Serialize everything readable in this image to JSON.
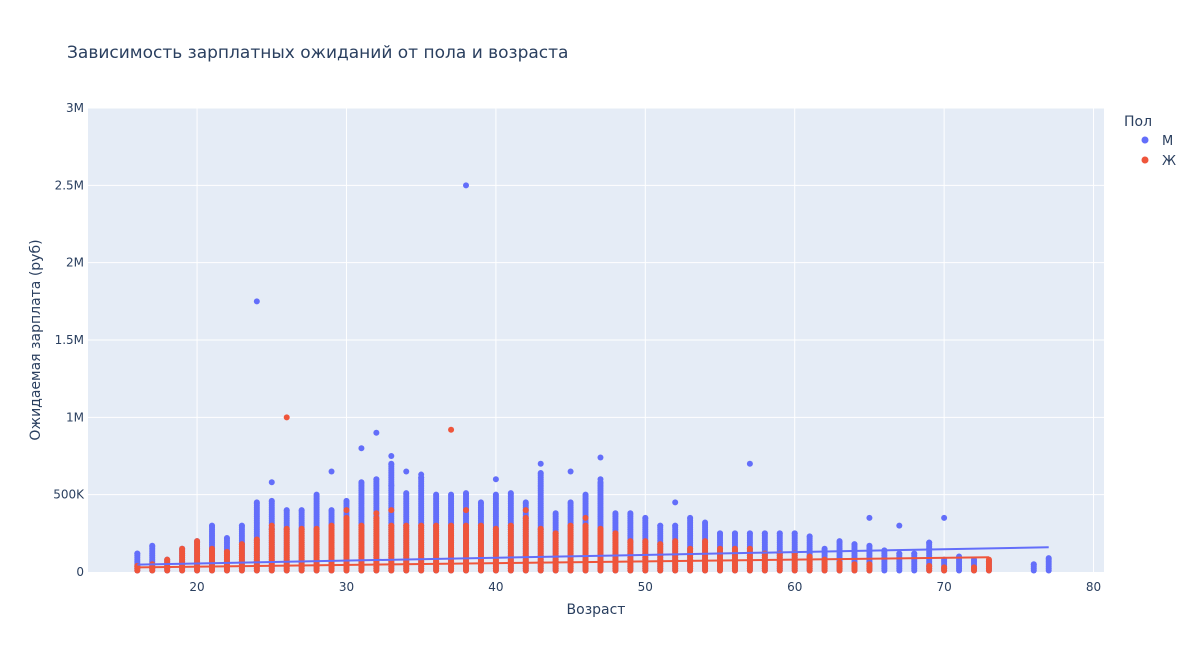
{
  "chart_data": {
    "type": "scatter",
    "title": "Зависимость зарплатных ожиданий от пола и возраста",
    "xlabel": "Возраст",
    "ylabel": "Ожидаемая зарплата (руб)",
    "xlim": [
      12.7,
      80.7
    ],
    "ylim": [
      0,
      3000000
    ],
    "x_ticks": [
      20,
      30,
      40,
      50,
      60,
      70,
      80
    ],
    "x_tick_labels": [
      "20",
      "30",
      "40",
      "50",
      "60",
      "70",
      "80"
    ],
    "y_ticks": [
      0,
      500000,
      1000000,
      1500000,
      2000000,
      2500000,
      3000000
    ],
    "y_tick_labels": [
      "0",
      "500K",
      "1M",
      "1.5M",
      "2M",
      "2.5M",
      "3M"
    ],
    "grid": true,
    "legend_title": "Пол",
    "legend_position": "top-right",
    "series": [
      {
        "name": "М",
        "color": "#636efa",
        "columns": [
          {
            "x": 16,
            "max": 120000
          },
          {
            "x": 17,
            "max": 170000
          },
          {
            "x": 18,
            "max": 80000
          },
          {
            "x": 19,
            "max": 150000
          },
          {
            "x": 20,
            "max": 200000
          },
          {
            "x": 21,
            "max": 300000
          },
          {
            "x": 22,
            "max": 220000
          },
          {
            "x": 23,
            "max": 300000
          },
          {
            "x": 24,
            "max": 450000
          },
          {
            "x": 25,
            "max": 460000
          },
          {
            "x": 26,
            "max": 400000
          },
          {
            "x": 27,
            "max": 400000
          },
          {
            "x": 28,
            "max": 500000
          },
          {
            "x": 29,
            "max": 400000
          },
          {
            "x": 30,
            "max": 460000
          },
          {
            "x": 31,
            "max": 580000
          },
          {
            "x": 32,
            "max": 600000
          },
          {
            "x": 33,
            "max": 700000
          },
          {
            "x": 34,
            "max": 510000
          },
          {
            "x": 35,
            "max": 610000
          },
          {
            "x": 36,
            "max": 500000
          },
          {
            "x": 37,
            "max": 500000
          },
          {
            "x": 38,
            "max": 510000
          },
          {
            "x": 39,
            "max": 450000
          },
          {
            "x": 40,
            "max": 500000
          },
          {
            "x": 41,
            "max": 510000
          },
          {
            "x": 42,
            "max": 450000
          },
          {
            "x": 43,
            "max": 640000
          },
          {
            "x": 44,
            "max": 380000
          },
          {
            "x": 45,
            "max": 450000
          },
          {
            "x": 46,
            "max": 500000
          },
          {
            "x": 47,
            "max": 580000
          },
          {
            "x": 48,
            "max": 380000
          },
          {
            "x": 49,
            "max": 380000
          },
          {
            "x": 50,
            "max": 350000
          },
          {
            "x": 51,
            "max": 300000
          },
          {
            "x": 52,
            "max": 300000
          },
          {
            "x": 53,
            "max": 350000
          },
          {
            "x": 54,
            "max": 320000
          },
          {
            "x": 55,
            "max": 250000
          },
          {
            "x": 56,
            "max": 250000
          },
          {
            "x": 57,
            "max": 250000
          },
          {
            "x": 58,
            "max": 250000
          },
          {
            "x": 59,
            "max": 250000
          },
          {
            "x": 60,
            "max": 250000
          },
          {
            "x": 61,
            "max": 230000
          },
          {
            "x": 62,
            "max": 150000
          },
          {
            "x": 63,
            "max": 200000
          },
          {
            "x": 64,
            "max": 180000
          },
          {
            "x": 65,
            "max": 170000
          },
          {
            "x": 66,
            "max": 140000
          },
          {
            "x": 67,
            "max": 120000
          },
          {
            "x": 68,
            "max": 120000
          },
          {
            "x": 69,
            "max": 190000
          },
          {
            "x": 70,
            "max": 80000
          },
          {
            "x": 71,
            "max": 100000
          },
          {
            "x": 72,
            "max": 80000
          },
          {
            "x": 73,
            "max": 70000
          },
          {
            "x": 76,
            "max": 50000
          },
          {
            "x": 77,
            "max": 90000
          }
        ],
        "outliers": [
          {
            "x": 38,
            "y": 2500000
          },
          {
            "x": 24,
            "y": 1750000
          },
          {
            "x": 32,
            "y": 900000
          },
          {
            "x": 31,
            "y": 800000
          },
          {
            "x": 33,
            "y": 750000
          },
          {
            "x": 47,
            "y": 740000
          },
          {
            "x": 43,
            "y": 700000
          },
          {
            "x": 57,
            "y": 700000
          },
          {
            "x": 45,
            "y": 650000
          },
          {
            "x": 29,
            "y": 650000
          },
          {
            "x": 34,
            "y": 650000
          },
          {
            "x": 35,
            "y": 630000
          },
          {
            "x": 40,
            "y": 600000
          },
          {
            "x": 47,
            "y": 600000
          },
          {
            "x": 25,
            "y": 580000
          },
          {
            "x": 33,
            "y": 560000
          },
          {
            "x": 65,
            "y": 350000
          },
          {
            "x": 70,
            "y": 350000
          },
          {
            "x": 67,
            "y": 300000
          },
          {
            "x": 52,
            "y": 450000
          }
        ],
        "trendline": {
          "x": [
            16,
            77
          ],
          "y": [
            48000,
            160000
          ]
        }
      },
      {
        "name": "Ж",
        "color": "#ef553b",
        "columns": [
          {
            "x": 16,
            "max": 40000
          },
          {
            "x": 17,
            "max": 50000
          },
          {
            "x": 18,
            "max": 80000
          },
          {
            "x": 19,
            "max": 150000
          },
          {
            "x": 20,
            "max": 200000
          },
          {
            "x": 21,
            "max": 150000
          },
          {
            "x": 22,
            "max": 130000
          },
          {
            "x": 23,
            "max": 180000
          },
          {
            "x": 24,
            "max": 210000
          },
          {
            "x": 25,
            "max": 280000
          },
          {
            "x": 26,
            "max": 280000
          },
          {
            "x": 27,
            "max": 280000
          },
          {
            "x": 28,
            "max": 280000
          },
          {
            "x": 29,
            "max": 300000
          },
          {
            "x": 30,
            "max": 350000
          },
          {
            "x": 31,
            "max": 300000
          },
          {
            "x": 32,
            "max": 350000
          },
          {
            "x": 33,
            "max": 300000
          },
          {
            "x": 34,
            "max": 300000
          },
          {
            "x": 35,
            "max": 300000
          },
          {
            "x": 36,
            "max": 300000
          },
          {
            "x": 37,
            "max": 300000
          },
          {
            "x": 38,
            "max": 300000
          },
          {
            "x": 39,
            "max": 300000
          },
          {
            "x": 40,
            "max": 280000
          },
          {
            "x": 41,
            "max": 300000
          },
          {
            "x": 42,
            "max": 350000
          },
          {
            "x": 43,
            "max": 280000
          },
          {
            "x": 44,
            "max": 250000
          },
          {
            "x": 45,
            "max": 300000
          },
          {
            "x": 46,
            "max": 300000
          },
          {
            "x": 47,
            "max": 280000
          },
          {
            "x": 48,
            "max": 250000
          },
          {
            "x": 49,
            "max": 200000
          },
          {
            "x": 50,
            "max": 200000
          },
          {
            "x": 51,
            "max": 180000
          },
          {
            "x": 52,
            "max": 200000
          },
          {
            "x": 53,
            "max": 150000
          },
          {
            "x": 54,
            "max": 200000
          },
          {
            "x": 55,
            "max": 150000
          },
          {
            "x": 56,
            "max": 150000
          },
          {
            "x": 57,
            "max": 150000
          },
          {
            "x": 58,
            "max": 120000
          },
          {
            "x": 59,
            "max": 120000
          },
          {
            "x": 60,
            "max": 120000
          },
          {
            "x": 61,
            "max": 100000
          },
          {
            "x": 62,
            "max": 80000
          },
          {
            "x": 63,
            "max": 60000
          },
          {
            "x": 64,
            "max": 50000
          },
          {
            "x": 65,
            "max": 50000
          },
          {
            "x": 69,
            "max": 40000
          },
          {
            "x": 70,
            "max": 30000
          },
          {
            "x": 72,
            "max": 30000
          },
          {
            "x": 73,
            "max": 80000
          }
        ],
        "outliers": [
          {
            "x": 26,
            "y": 1000000
          },
          {
            "x": 37,
            "y": 920000
          },
          {
            "x": 38,
            "y": 400000
          },
          {
            "x": 42,
            "y": 400000
          },
          {
            "x": 33,
            "y": 400000
          },
          {
            "x": 32,
            "y": 380000
          },
          {
            "x": 30,
            "y": 400000
          },
          {
            "x": 46,
            "y": 350000
          },
          {
            "x": 25,
            "y": 300000
          }
        ],
        "trendline": {
          "x": [
            16,
            73
          ],
          "y": [
            30000,
            95000
          ]
        }
      }
    ]
  }
}
